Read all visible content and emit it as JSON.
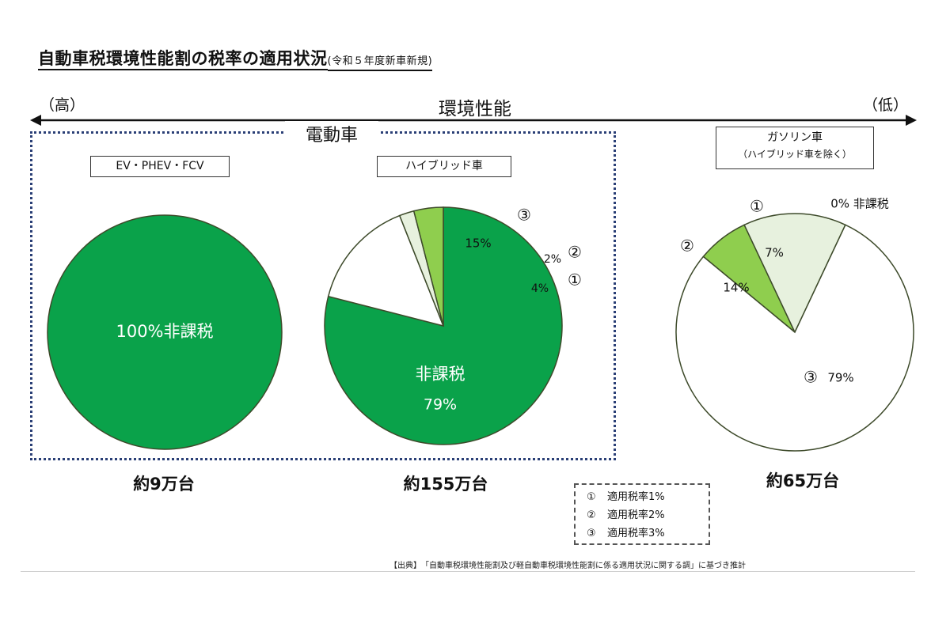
{
  "title": {
    "main": "自動車税環境性能割の税率の適用状況",
    "sub": "(令和５年度新車新規)"
  },
  "axis": {
    "high": "（高）",
    "label": "環境性能",
    "low": "（低）"
  },
  "groups": {
    "electric_label": "電動車"
  },
  "categories": {
    "ev": "EV・PHEV・FCV",
    "hybrid": "ハイブリッド車",
    "gasoline": "ガソリン車",
    "gasoline_note": "（ハイブリッド車を除く）"
  },
  "totals": {
    "ev": "約9万台",
    "hybrid": "約155万台",
    "gasoline": "約65万台"
  },
  "legend": [
    {
      "num": "①",
      "text": "適用税率1%"
    },
    {
      "num": "②",
      "text": "適用税率2%"
    },
    {
      "num": "③",
      "text": "適用税率3%"
    }
  ],
  "source": "【出典】　「自動車税環境性能割及び軽自動車税環境性能割に係る適用状況に関する調」に基づき推計",
  "colors": {
    "exempt": "#0aa24a",
    "rate1": "#8fce4e",
    "rate2": "#e7f1de",
    "rate3": "#ffffff",
    "outline": "#3d4a2a"
  },
  "chart_data": [
    {
      "type": "pie",
      "name_label": "EV・PHEV・FCV",
      "slices": [
        {
          "label": "非課税",
          "value": 100,
          "text": "100%非課税",
          "color": "#0aa24a"
        }
      ]
    },
    {
      "type": "pie",
      "name_label": "ハイブリッド車",
      "slices": [
        {
          "label": "非課税",
          "value": 79,
          "text": "非課税",
          "text2": "79%",
          "color": "#0aa24a"
        },
        {
          "label": "③",
          "value": 15,
          "text": "15%",
          "color": "#ffffff"
        },
        {
          "label": "②",
          "value": 2,
          "text": "2%",
          "color": "#e7f1de"
        },
        {
          "label": "①",
          "value": 4,
          "text": "4%",
          "color": "#8fce4e"
        }
      ]
    },
    {
      "type": "pie",
      "name_label": "ガソリン車",
      "slices": [
        {
          "label": "非課税",
          "value": 0,
          "text": "0%  非課税",
          "color": "#0aa24a"
        },
        {
          "label": "①",
          "value": 7,
          "text": "7%",
          "color": "#8fce4e"
        },
        {
          "label": "②",
          "value": 14,
          "text": "14%",
          "color": "#e7f1de"
        },
        {
          "label": "③",
          "value": 79,
          "text": "79%",
          "color": "#ffffff"
        }
      ]
    }
  ]
}
